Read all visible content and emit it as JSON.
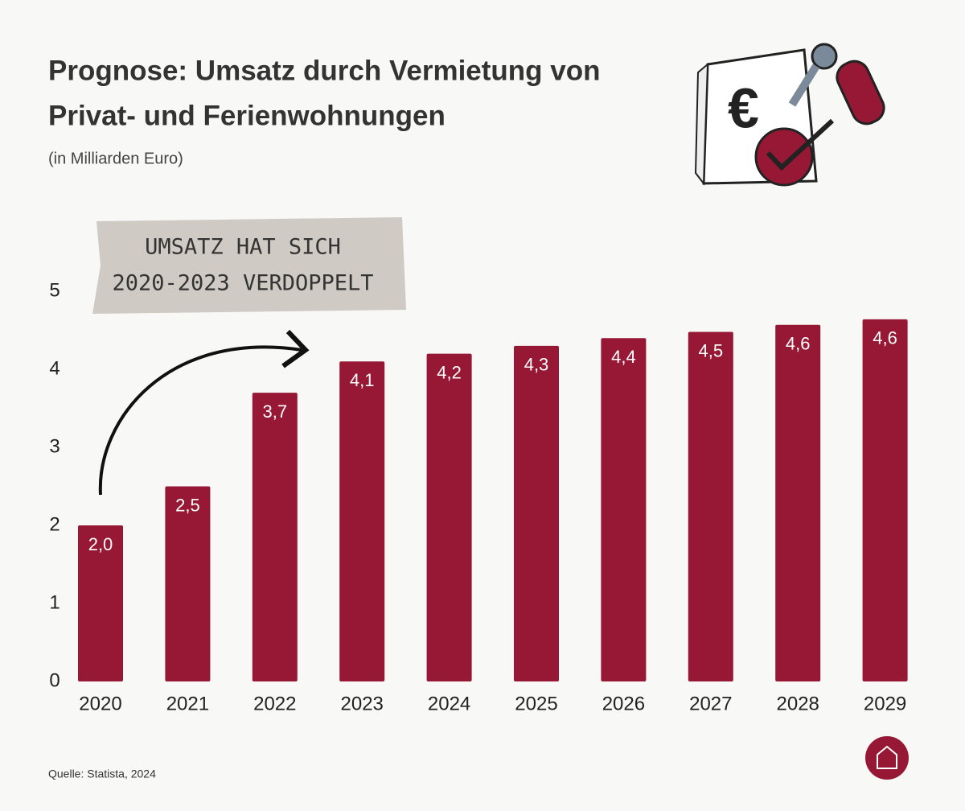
{
  "chart_data": {
    "type": "bar",
    "title_lines": [
      "Prognose: Umsatz durch Vermietung von",
      "Privat- und Ferienwohnungen"
    ],
    "subtitle": "(in Milliarden Euro)",
    "annotation": [
      "UMSATZ HAT SICH",
      "2020-2023 VERDOPPELT"
    ],
    "source": "Quelle: Statista, 2024",
    "categories": [
      "2020",
      "2021",
      "2022",
      "2023",
      "2024",
      "2025",
      "2026",
      "2027",
      "2028",
      "2029"
    ],
    "values": [
      2.0,
      2.5,
      3.7,
      4.1,
      4.2,
      4.3,
      4.4,
      4.48,
      4.57,
      4.64
    ],
    "value_labels": [
      "2,0",
      "2,5",
      "3,7",
      "4,1",
      "4,2",
      "4,3",
      "4,4",
      "4,5",
      "4,6",
      "4,6"
    ],
    "color": "#961834",
    "ylim": [
      0,
      5
    ],
    "yticks": [
      0,
      1,
      2,
      3,
      4,
      5
    ],
    "grid": false
  }
}
